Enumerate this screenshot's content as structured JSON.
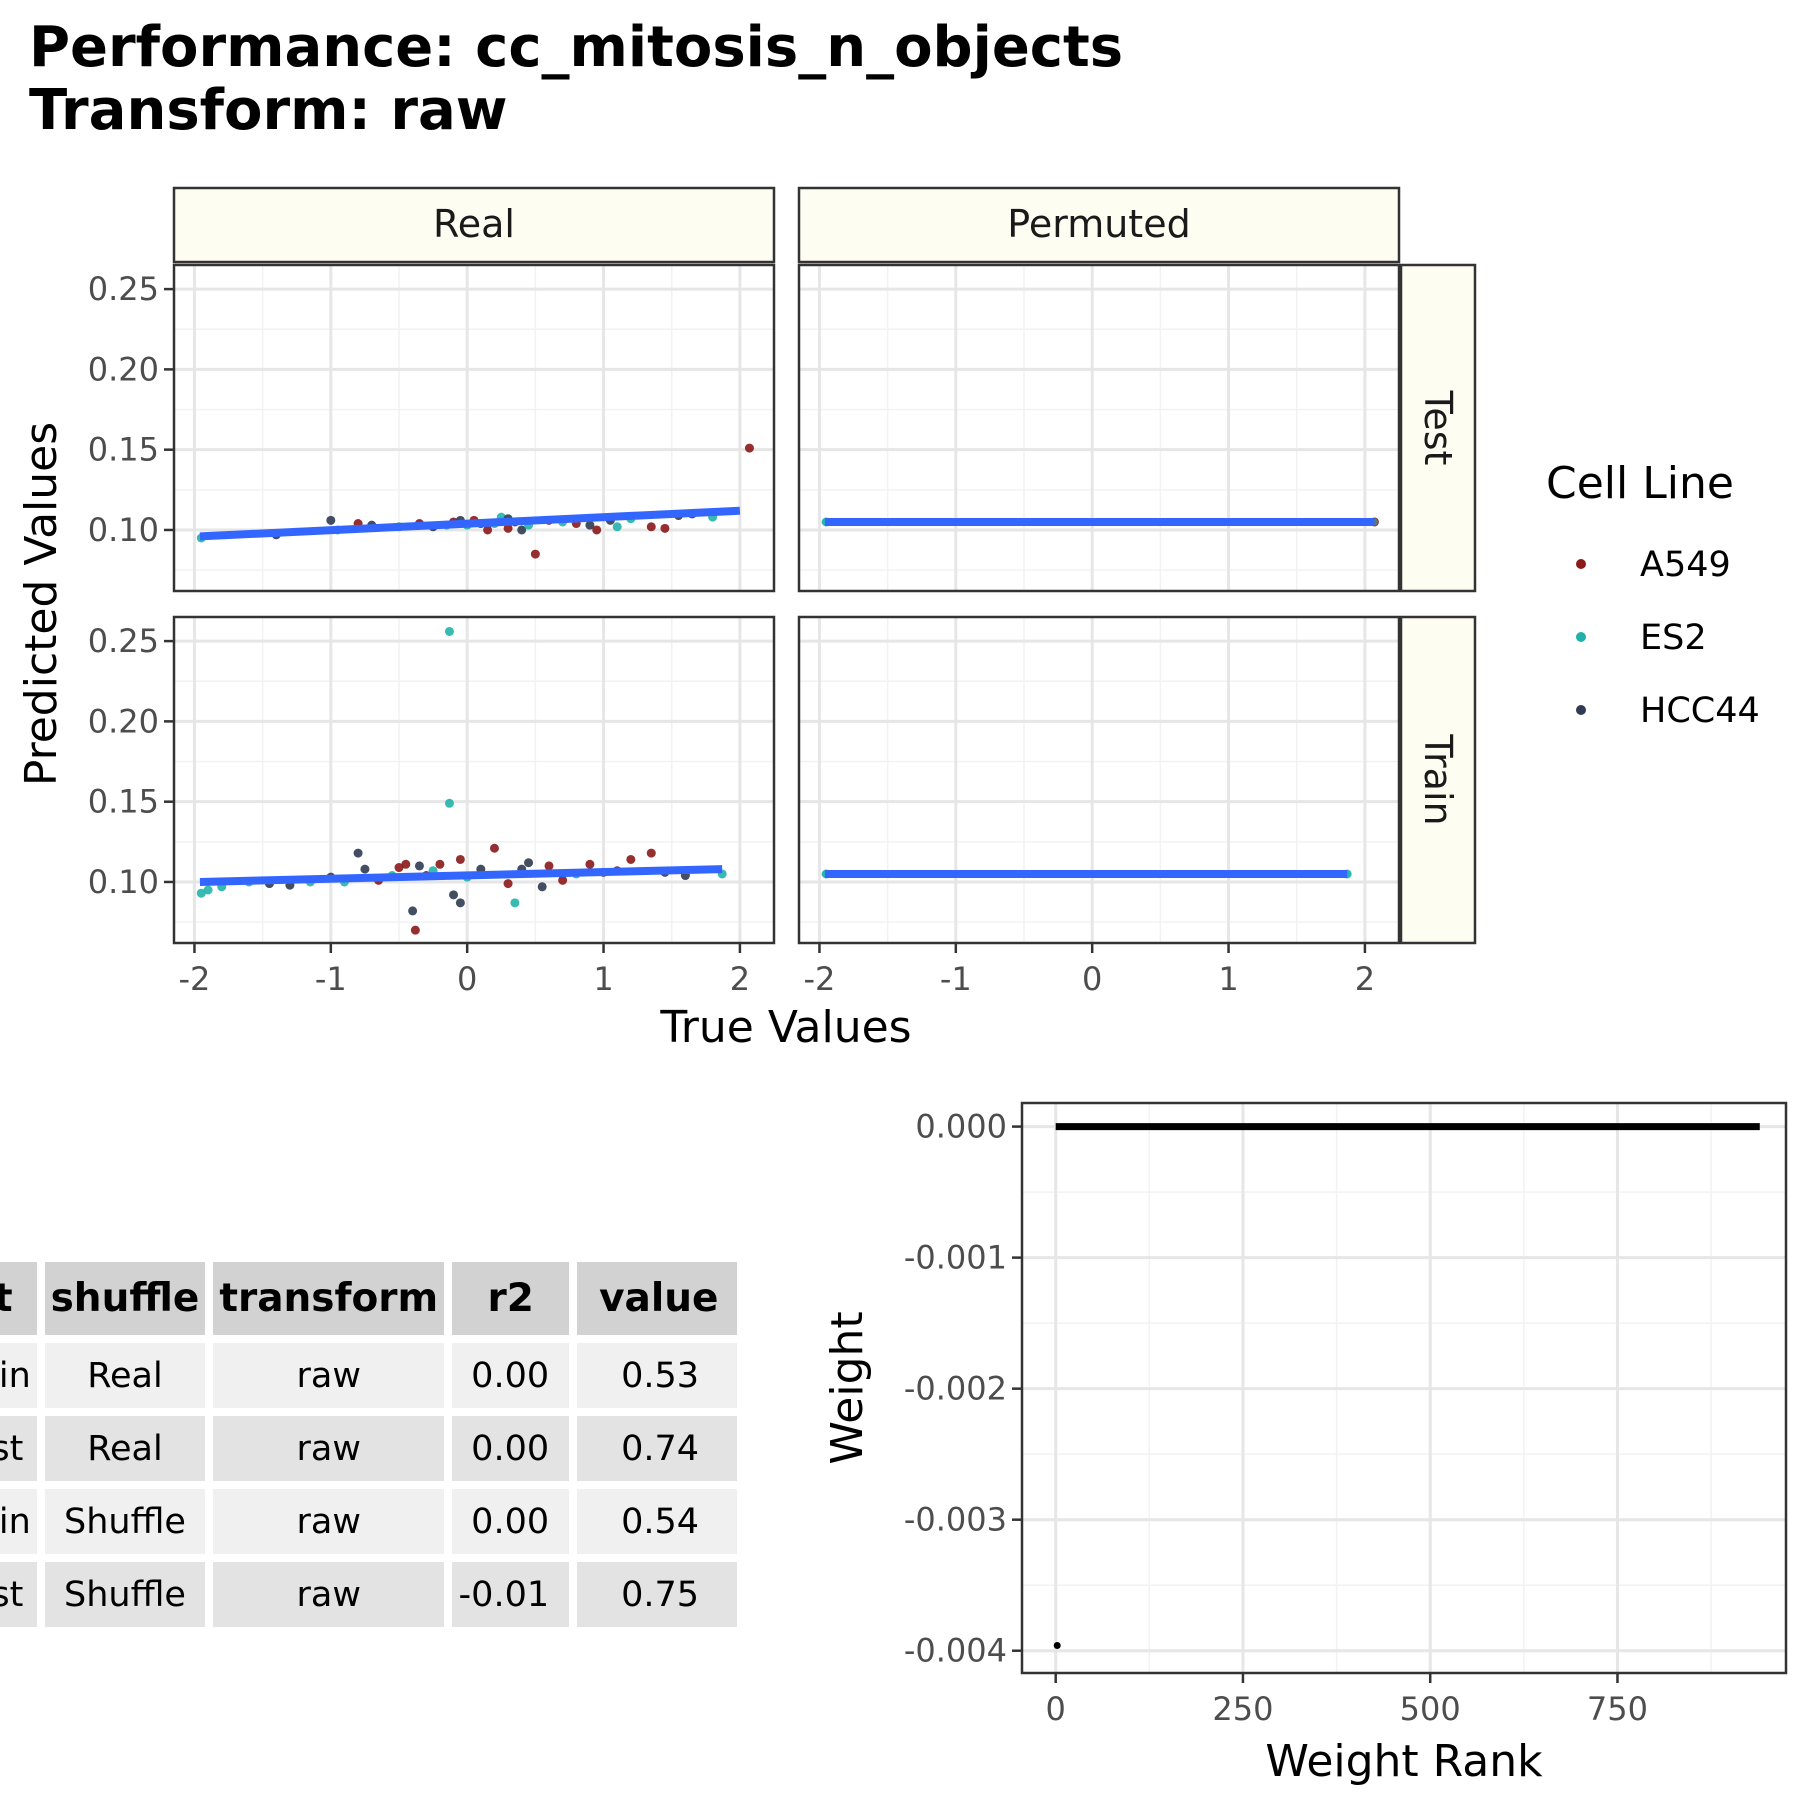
{
  "title": {
    "line1": "Performance: cc_mitosis_n_objects",
    "line2": "Transform: raw"
  },
  "colors": {
    "A549": "#8b1a1a",
    "ES2": "#20b2aa",
    "HCC44": "#2f3b52",
    "fit_line": "#3366ff",
    "strip_fill": "#fdfdf2",
    "weight_line": "#000000"
  },
  "chart_data": [
    {
      "type": "scatter",
      "facets": {
        "columns": [
          "Real",
          "Permuted"
        ],
        "rows": [
          "Test",
          "Train"
        ]
      },
      "xlabel": "True Values",
      "ylabel": "Predicted Values",
      "xlim": [
        -2.15,
        2.25
      ],
      "ylim": [
        0.062,
        0.265
      ],
      "x_ticks": [
        -2,
        -1,
        0,
        1,
        2
      ],
      "x_tick_labels": [
        "-2",
        "-1",
        "0",
        "1",
        "2"
      ],
      "y_ticks": [
        0.1,
        0.15,
        0.2,
        0.25
      ],
      "y_tick_labels": [
        "0.10",
        "0.15",
        "0.20",
        "0.25"
      ],
      "grid": true,
      "legend": {
        "title": "Cell Line",
        "entries": [
          "A549",
          "ES2",
          "HCC44"
        ],
        "placement": "right"
      },
      "fit_lines": {
        "Test-Real": [
          [
            -1.96,
            0.096
          ],
          [
            2.0,
            0.112
          ]
        ],
        "Test-Permuted": [
          [
            -1.96,
            0.105
          ],
          [
            2.07,
            0.105
          ]
        ],
        "Train-Real": [
          [
            -1.96,
            0.1
          ],
          [
            1.87,
            0.108
          ]
        ],
        "Train-Permuted": [
          [
            -1.96,
            0.105
          ],
          [
            1.87,
            0.105
          ]
        ]
      },
      "points": {
        "Test-Real": [
          {
            "x": -1.95,
            "y": 0.095,
            "line": "ES2"
          },
          {
            "x": -1.4,
            "y": 0.097,
            "line": "HCC44"
          },
          {
            "x": -1.0,
            "y": 0.106,
            "line": "HCC44"
          },
          {
            "x": -0.95,
            "y": 0.1,
            "line": "ES2"
          },
          {
            "x": -0.8,
            "y": 0.104,
            "line": "A549"
          },
          {
            "x": -0.7,
            "y": 0.103,
            "line": "HCC44"
          },
          {
            "x": -0.5,
            "y": 0.102,
            "line": "ES2"
          },
          {
            "x": -0.35,
            "y": 0.104,
            "line": "A549"
          },
          {
            "x": -0.25,
            "y": 0.102,
            "line": "HCC44"
          },
          {
            "x": -0.15,
            "y": 0.103,
            "line": "ES2"
          },
          {
            "x": -0.1,
            "y": 0.105,
            "line": "A549"
          },
          {
            "x": -0.05,
            "y": 0.106,
            "line": "HCC44"
          },
          {
            "x": 0.0,
            "y": 0.103,
            "line": "ES2"
          },
          {
            "x": 0.05,
            "y": 0.106,
            "line": "A549"
          },
          {
            "x": 0.1,
            "y": 0.104,
            "line": "HCC44"
          },
          {
            "x": 0.15,
            "y": 0.1,
            "line": "A549"
          },
          {
            "x": 0.2,
            "y": 0.104,
            "line": "ES2"
          },
          {
            "x": 0.25,
            "y": 0.108,
            "line": "ES2"
          },
          {
            "x": 0.3,
            "y": 0.101,
            "line": "A549"
          },
          {
            "x": 0.3,
            "y": 0.107,
            "line": "HCC44"
          },
          {
            "x": 0.35,
            "y": 0.105,
            "line": "A549"
          },
          {
            "x": 0.4,
            "y": 0.1,
            "line": "HCC44"
          },
          {
            "x": 0.45,
            "y": 0.103,
            "line": "ES2"
          },
          {
            "x": 0.5,
            "y": 0.085,
            "line": "A549"
          },
          {
            "x": 0.6,
            "y": 0.106,
            "line": "A549"
          },
          {
            "x": 0.7,
            "y": 0.105,
            "line": "ES2"
          },
          {
            "x": 0.8,
            "y": 0.104,
            "line": "A549"
          },
          {
            "x": 0.9,
            "y": 0.103,
            "line": "HCC44"
          },
          {
            "x": 0.95,
            "y": 0.1,
            "line": "A549"
          },
          {
            "x": 1.05,
            "y": 0.106,
            "line": "HCC44"
          },
          {
            "x": 1.1,
            "y": 0.102,
            "line": "ES2"
          },
          {
            "x": 1.2,
            "y": 0.107,
            "line": "ES2"
          },
          {
            "x": 1.35,
            "y": 0.102,
            "line": "A549"
          },
          {
            "x": 1.45,
            "y": 0.101,
            "line": "A549"
          },
          {
            "x": 1.55,
            "y": 0.109,
            "line": "HCC44"
          },
          {
            "x": 1.65,
            "y": 0.11,
            "line": "A549"
          },
          {
            "x": 1.8,
            "y": 0.108,
            "line": "ES2"
          },
          {
            "x": 2.07,
            "y": 0.151,
            "line": "A549"
          }
        ],
        "Test-Permuted": [
          {
            "x": -1.95,
            "y": 0.105,
            "line": "ES2"
          },
          {
            "x": 2.07,
            "y": 0.105,
            "line": "A549"
          }
        ],
        "Train-Real": [
          {
            "x": -1.95,
            "y": 0.093,
            "line": "ES2"
          },
          {
            "x": -1.9,
            "y": 0.095,
            "line": "ES2"
          },
          {
            "x": -1.8,
            "y": 0.097,
            "line": "ES2"
          },
          {
            "x": -1.6,
            "y": 0.1,
            "line": "ES2"
          },
          {
            "x": -1.45,
            "y": 0.099,
            "line": "HCC44"
          },
          {
            "x": -1.3,
            "y": 0.098,
            "line": "HCC44"
          },
          {
            "x": -1.15,
            "y": 0.1,
            "line": "ES2"
          },
          {
            "x": -1.0,
            "y": 0.103,
            "line": "HCC44"
          },
          {
            "x": -0.9,
            "y": 0.1,
            "line": "ES2"
          },
          {
            "x": -0.8,
            "y": 0.118,
            "line": "HCC44"
          },
          {
            "x": -0.75,
            "y": 0.108,
            "line": "HCC44"
          },
          {
            "x": -0.65,
            "y": 0.101,
            "line": "A549"
          },
          {
            "x": -0.55,
            "y": 0.104,
            "line": "ES2"
          },
          {
            "x": -0.5,
            "y": 0.109,
            "line": "A549"
          },
          {
            "x": -0.45,
            "y": 0.111,
            "line": "A549"
          },
          {
            "x": -0.4,
            "y": 0.082,
            "line": "HCC44"
          },
          {
            "x": -0.38,
            "y": 0.07,
            "line": "A549"
          },
          {
            "x": -0.35,
            "y": 0.11,
            "line": "HCC44"
          },
          {
            "x": -0.3,
            "y": 0.104,
            "line": "A549"
          },
          {
            "x": -0.25,
            "y": 0.107,
            "line": "ES2"
          },
          {
            "x": -0.2,
            "y": 0.111,
            "line": "A549"
          },
          {
            "x": -0.13,
            "y": 0.256,
            "line": "ES2"
          },
          {
            "x": -0.13,
            "y": 0.149,
            "line": "ES2"
          },
          {
            "x": -0.1,
            "y": 0.092,
            "line": "HCC44"
          },
          {
            "x": -0.05,
            "y": 0.087,
            "line": "HCC44"
          },
          {
            "x": -0.05,
            "y": 0.114,
            "line": "A549"
          },
          {
            "x": 0.0,
            "y": 0.103,
            "line": "ES2"
          },
          {
            "x": 0.1,
            "y": 0.108,
            "line": "HCC44"
          },
          {
            "x": 0.2,
            "y": 0.121,
            "line": "A549"
          },
          {
            "x": 0.3,
            "y": 0.099,
            "line": "A549"
          },
          {
            "x": 0.35,
            "y": 0.087,
            "line": "ES2"
          },
          {
            "x": 0.4,
            "y": 0.108,
            "line": "HCC44"
          },
          {
            "x": 0.45,
            "y": 0.112,
            "line": "HCC44"
          },
          {
            "x": 0.55,
            "y": 0.097,
            "line": "HCC44"
          },
          {
            "x": 0.6,
            "y": 0.11,
            "line": "A549"
          },
          {
            "x": 0.7,
            "y": 0.101,
            "line": "A549"
          },
          {
            "x": 0.8,
            "y": 0.105,
            "line": "ES2"
          },
          {
            "x": 0.9,
            "y": 0.111,
            "line": "A549"
          },
          {
            "x": 1.0,
            "y": 0.106,
            "line": "HCC44"
          },
          {
            "x": 1.1,
            "y": 0.107,
            "line": "A549"
          },
          {
            "x": 1.2,
            "y": 0.114,
            "line": "A549"
          },
          {
            "x": 1.35,
            "y": 0.118,
            "line": "A549"
          },
          {
            "x": 1.45,
            "y": 0.106,
            "line": "HCC44"
          },
          {
            "x": 1.6,
            "y": 0.104,
            "line": "HCC44"
          },
          {
            "x": 1.87,
            "y": 0.105,
            "line": "ES2"
          }
        ],
        "Train-Permuted": [
          {
            "x": -1.95,
            "y": 0.105,
            "line": "ES2"
          },
          {
            "x": 1.87,
            "y": 0.105,
            "line": "ES2"
          }
        ]
      },
      "permuted_band_note": ""
    },
    {
      "type": "line",
      "xlabel": "Weight Rank",
      "ylabel": "Weight",
      "xlim": [
        -45,
        975
      ],
      "ylim": [
        -0.00417,
        0.00018
      ],
      "x_ticks": [
        0,
        250,
        500,
        750
      ],
      "x_tick_labels": [
        "0",
        "250",
        "500",
        "750"
      ],
      "y_ticks": [
        0.0,
        -0.001,
        -0.002,
        -0.003,
        -0.004
      ],
      "y_tick_labels": [
        "0.000",
        "-0.001",
        "-0.002",
        "-0.003",
        "-0.004"
      ],
      "grid": true,
      "series": [
        {
          "x": [
            0,
            940
          ],
          "y": [
            0.0,
            0.0
          ]
        }
      ],
      "outlier_points": [
        {
          "x": 2,
          "y": -0.00396
        }
      ]
    },
    {
      "type": "table",
      "columns": [
        "fit",
        "shuffle",
        "transform",
        "r2",
        "value"
      ],
      "rows": [
        [
          "Train",
          "Real",
          "raw",
          "0.00",
          "0.53"
        ],
        [
          "Test",
          "Real",
          "raw",
          "0.00",
          "0.74"
        ],
        [
          "Train",
          "Shuffle",
          "raw",
          "0.00",
          "0.54"
        ],
        [
          "Test",
          "Shuffle",
          "raw",
          "-0.01",
          "0.75"
        ]
      ]
    }
  ]
}
